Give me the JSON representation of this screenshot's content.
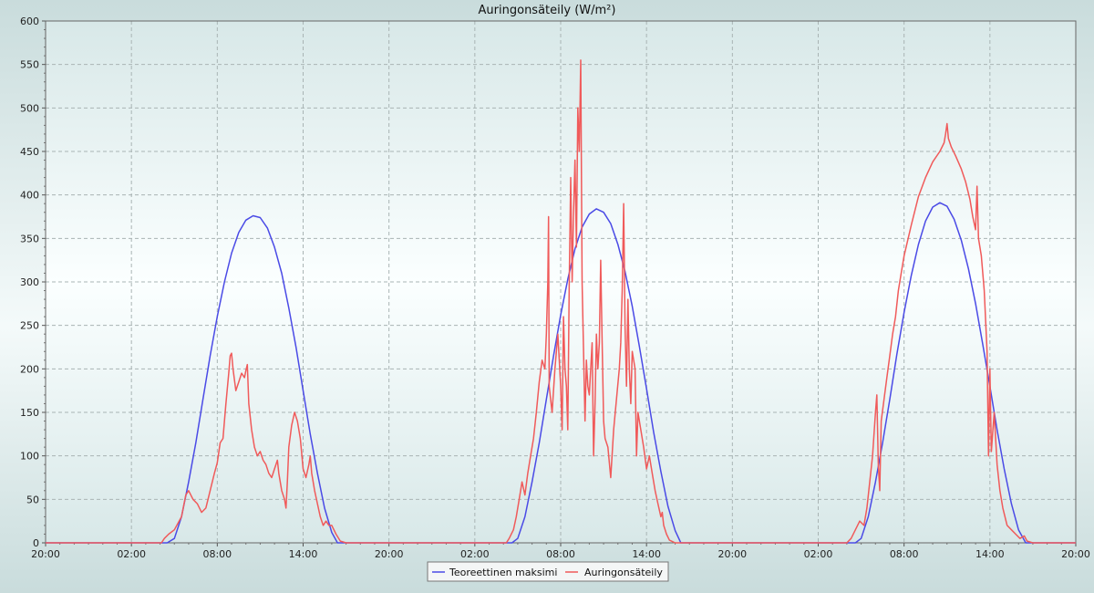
{
  "chart_data": {
    "type": "line",
    "title": "Auringonsäteily (W/m²)",
    "xlabel": "",
    "ylabel": "",
    "x_unit": "hours",
    "x_range": [
      0,
      72
    ],
    "x_ticks": [
      {
        "x": 0,
        "label": "20:00"
      },
      {
        "x": 6,
        "label": "02:00"
      },
      {
        "x": 12,
        "label": "08:00"
      },
      {
        "x": 18,
        "label": "14:00"
      },
      {
        "x": 24,
        "label": "20:00"
      },
      {
        "x": 30,
        "label": "02:00"
      },
      {
        "x": 36,
        "label": "08:00"
      },
      {
        "x": 42,
        "label": "14:00"
      },
      {
        "x": 48,
        "label": "20:00"
      },
      {
        "x": 54,
        "label": "02:00"
      },
      {
        "x": 60,
        "label": "08:00"
      },
      {
        "x": 66,
        "label": "14:00"
      },
      {
        "x": 72,
        "label": "20:00"
      }
    ],
    "ylim": [
      0,
      600
    ],
    "y_ticks": [
      0,
      50,
      100,
      150,
      200,
      250,
      300,
      350,
      400,
      450,
      500,
      550,
      600
    ],
    "grid": true,
    "legend_position": "bottom-center",
    "series": [
      {
        "name": "Teoreettinen maksimi",
        "color": "#4a4ae6",
        "points": [
          [
            0,
            0
          ],
          [
            8.5,
            0
          ],
          [
            9.0,
            5
          ],
          [
            9.5,
            30
          ],
          [
            10,
            70
          ],
          [
            10.5,
            115
          ],
          [
            11,
            165
          ],
          [
            11.5,
            215
          ],
          [
            12,
            260
          ],
          [
            12.5,
            300
          ],
          [
            13,
            333
          ],
          [
            13.5,
            357
          ],
          [
            14,
            371
          ],
          [
            14.5,
            376
          ],
          [
            15,
            374
          ],
          [
            15.5,
            362
          ],
          [
            16,
            340
          ],
          [
            16.5,
            310
          ],
          [
            17,
            270
          ],
          [
            17.5,
            225
          ],
          [
            18,
            175
          ],
          [
            18.5,
            125
          ],
          [
            19,
            80
          ],
          [
            19.5,
            40
          ],
          [
            20,
            12
          ],
          [
            20.4,
            0
          ],
          [
            32.6,
            0
          ],
          [
            33,
            5
          ],
          [
            33.5,
            30
          ],
          [
            34,
            70
          ],
          [
            34.5,
            115
          ],
          [
            35,
            165
          ],
          [
            35.5,
            215
          ],
          [
            36,
            262
          ],
          [
            36.5,
            303
          ],
          [
            37,
            338
          ],
          [
            37.5,
            363
          ],
          [
            38,
            378
          ],
          [
            38.5,
            384
          ],
          [
            39,
            380
          ],
          [
            39.5,
            367
          ],
          [
            40,
            343
          ],
          [
            40.5,
            312
          ],
          [
            41,
            272
          ],
          [
            41.5,
            226
          ],
          [
            42,
            177
          ],
          [
            42.5,
            127
          ],
          [
            43,
            82
          ],
          [
            43.5,
            42
          ],
          [
            44,
            14
          ],
          [
            44.4,
            0
          ],
          [
            56.6,
            0
          ],
          [
            57,
            5
          ],
          [
            57.5,
            30
          ],
          [
            58,
            70
          ],
          [
            58.5,
            115
          ],
          [
            59,
            165
          ],
          [
            59.5,
            217
          ],
          [
            60,
            265
          ],
          [
            60.5,
            307
          ],
          [
            61,
            343
          ],
          [
            61.5,
            370
          ],
          [
            62,
            386
          ],
          [
            62.5,
            391
          ],
          [
            63,
            387
          ],
          [
            63.5,
            372
          ],
          [
            64,
            348
          ],
          [
            64.5,
            315
          ],
          [
            65,
            275
          ],
          [
            65.5,
            228
          ],
          [
            66,
            180
          ],
          [
            66.5,
            130
          ],
          [
            67,
            85
          ],
          [
            67.5,
            45
          ],
          [
            68,
            15
          ],
          [
            68.5,
            0
          ],
          [
            72,
            0
          ]
        ]
      },
      {
        "name": "Auringonsäteily",
        "color": "#f05a5a",
        "points": [
          [
            0,
            0
          ],
          [
            8.1,
            0
          ],
          [
            8.3,
            5
          ],
          [
            8.6,
            10
          ],
          [
            9,
            15
          ],
          [
            9.5,
            30
          ],
          [
            9.8,
            55
          ],
          [
            10,
            60
          ],
          [
            10.3,
            50
          ],
          [
            10.6,
            45
          ],
          [
            10.9,
            35
          ],
          [
            11.2,
            40
          ],
          [
            11.5,
            60
          ],
          [
            11.8,
            80
          ],
          [
            12,
            92
          ],
          [
            12.2,
            115
          ],
          [
            12.4,
            120
          ],
          [
            12.6,
            160
          ],
          [
            12.8,
            195
          ],
          [
            12.9,
            215
          ],
          [
            13.0,
            218
          ],
          [
            13.1,
            200
          ],
          [
            13.3,
            175
          ],
          [
            13.5,
            185
          ],
          [
            13.7,
            195
          ],
          [
            13.9,
            190
          ],
          [
            14.0,
            198
          ],
          [
            14.1,
            205
          ],
          [
            14.2,
            160
          ],
          [
            14.4,
            130
          ],
          [
            14.6,
            110
          ],
          [
            14.8,
            100
          ],
          [
            15.0,
            105
          ],
          [
            15.2,
            95
          ],
          [
            15.4,
            90
          ],
          [
            15.6,
            80
          ],
          [
            15.8,
            75
          ],
          [
            16.0,
            85
          ],
          [
            16.2,
            95
          ],
          [
            16.3,
            80
          ],
          [
            16.5,
            60
          ],
          [
            16.7,
            50
          ],
          [
            16.8,
            40
          ],
          [
            16.9,
            70
          ],
          [
            17.0,
            110
          ],
          [
            17.2,
            135
          ],
          [
            17.4,
            150
          ],
          [
            17.6,
            140
          ],
          [
            17.8,
            120
          ],
          [
            18.0,
            85
          ],
          [
            18.2,
            75
          ],
          [
            18.4,
            90
          ],
          [
            18.5,
            100
          ],
          [
            18.6,
            80
          ],
          [
            18.8,
            60
          ],
          [
            19.0,
            45
          ],
          [
            19.2,
            30
          ],
          [
            19.4,
            20
          ],
          [
            19.6,
            25
          ],
          [
            19.8,
            20
          ],
          [
            20.0,
            20
          ],
          [
            20.3,
            10
          ],
          [
            20.6,
            2
          ],
          [
            21,
            0
          ],
          [
            32.2,
            0
          ],
          [
            32.4,
            5
          ],
          [
            32.7,
            15
          ],
          [
            32.9,
            30
          ],
          [
            33.1,
            50
          ],
          [
            33.3,
            70
          ],
          [
            33.5,
            55
          ],
          [
            33.7,
            80
          ],
          [
            33.9,
            100
          ],
          [
            34.1,
            120
          ],
          [
            34.3,
            150
          ],
          [
            34.5,
            185
          ],
          [
            34.7,
            210
          ],
          [
            34.9,
            200
          ],
          [
            35.0,
            240
          ],
          [
            35.1,
            300
          ],
          [
            35.15,
            375
          ],
          [
            35.2,
            180
          ],
          [
            35.4,
            150
          ],
          [
            35.6,
            200
          ],
          [
            35.8,
            240
          ],
          [
            36.0,
            180
          ],
          [
            36.1,
            130
          ],
          [
            36.2,
            260
          ],
          [
            36.3,
            200
          ],
          [
            36.4,
            180
          ],
          [
            36.5,
            130
          ],
          [
            36.6,
            300
          ],
          [
            36.7,
            420
          ],
          [
            36.8,
            300
          ],
          [
            36.9,
            380
          ],
          [
            37.0,
            440
          ],
          [
            37.1,
            340
          ],
          [
            37.2,
            500
          ],
          [
            37.3,
            450
          ],
          [
            37.4,
            555
          ],
          [
            37.5,
            300
          ],
          [
            37.6,
            220
          ],
          [
            37.7,
            140
          ],
          [
            37.8,
            210
          ],
          [
            37.9,
            180
          ],
          [
            38.0,
            170
          ],
          [
            38.2,
            230
          ],
          [
            38.3,
            100
          ],
          [
            38.4,
            160
          ],
          [
            38.5,
            240
          ],
          [
            38.6,
            200
          ],
          [
            38.7,
            230
          ],
          [
            38.8,
            325
          ],
          [
            38.9,
            230
          ],
          [
            39.0,
            140
          ],
          [
            39.1,
            120
          ],
          [
            39.3,
            110
          ],
          [
            39.5,
            75
          ],
          [
            39.7,
            130
          ],
          [
            39.9,
            165
          ],
          [
            40.1,
            200
          ],
          [
            40.2,
            230
          ],
          [
            40.3,
            290
          ],
          [
            40.4,
            390
          ],
          [
            40.5,
            250
          ],
          [
            40.6,
            180
          ],
          [
            40.7,
            280
          ],
          [
            40.8,
            200
          ],
          [
            40.9,
            160
          ],
          [
            41.0,
            220
          ],
          [
            41.2,
            200
          ],
          [
            41.3,
            100
          ],
          [
            41.4,
            150
          ],
          [
            41.6,
            130
          ],
          [
            41.8,
            110
          ],
          [
            42.0,
            85
          ],
          [
            42.2,
            100
          ],
          [
            42.4,
            80
          ],
          [
            42.6,
            60
          ],
          [
            42.8,
            45
          ],
          [
            43.0,
            30
          ],
          [
            43.1,
            35
          ],
          [
            43.2,
            20
          ],
          [
            43.4,
            10
          ],
          [
            43.6,
            3
          ],
          [
            44,
            0
          ],
          [
            56.0,
            0
          ],
          [
            56.3,
            5
          ],
          [
            56.6,
            15
          ],
          [
            56.9,
            25
          ],
          [
            57.2,
            20
          ],
          [
            57.4,
            40
          ],
          [
            57.6,
            70
          ],
          [
            57.8,
            100
          ],
          [
            58.0,
            150
          ],
          [
            58.1,
            170
          ],
          [
            58.2,
            90
          ],
          [
            58.3,
            60
          ],
          [
            58.4,
            140
          ],
          [
            58.6,
            165
          ],
          [
            58.8,
            190
          ],
          [
            59.0,
            215
          ],
          [
            59.2,
            240
          ],
          [
            59.4,
            260
          ],
          [
            59.6,
            290
          ],
          [
            59.8,
            310
          ],
          [
            60.0,
            330
          ],
          [
            60.5,
            365
          ],
          [
            61,
            398
          ],
          [
            61.5,
            420
          ],
          [
            62,
            438
          ],
          [
            62.5,
            450
          ],
          [
            62.8,
            460
          ],
          [
            62.9,
            470
          ],
          [
            63.0,
            482
          ],
          [
            63.1,
            465
          ],
          [
            63.3,
            455
          ],
          [
            63.6,
            445
          ],
          [
            64,
            430
          ],
          [
            64.3,
            415
          ],
          [
            64.6,
            395
          ],
          [
            64.8,
            375
          ],
          [
            65.0,
            360
          ],
          [
            65.1,
            410
          ],
          [
            65.2,
            350
          ],
          [
            65.4,
            330
          ],
          [
            65.6,
            290
          ],
          [
            65.8,
            220
          ],
          [
            65.9,
            100
          ],
          [
            66.0,
            200
          ],
          [
            66.1,
            105
          ],
          [
            66.3,
            150
          ],
          [
            66.5,
            90
          ],
          [
            66.7,
            60
          ],
          [
            66.9,
            40
          ],
          [
            67.2,
            20
          ],
          [
            67.5,
            15
          ],
          [
            67.8,
            10
          ],
          [
            68.1,
            5
          ],
          [
            68.4,
            8
          ],
          [
            68.6,
            2
          ],
          [
            69,
            0
          ],
          [
            72,
            0
          ]
        ]
      }
    ]
  },
  "legend": {
    "items": [
      {
        "label": "Teoreettinen maksimi",
        "color": "#4a4ae6"
      },
      {
        "label": "Auringonsäteily",
        "color": "#f05a5a"
      }
    ]
  }
}
